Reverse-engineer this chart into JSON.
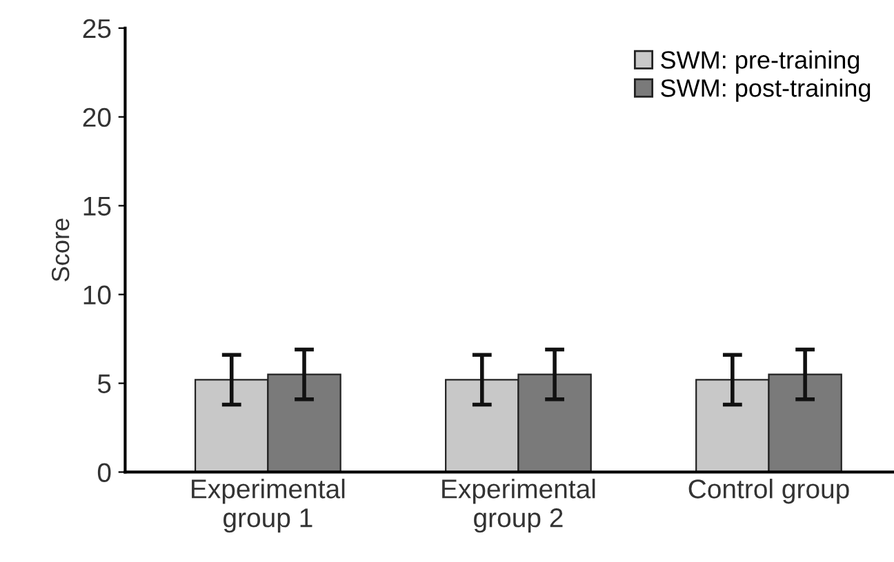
{
  "chart_data": {
    "type": "bar",
    "ylabel": "Score",
    "categories": [
      "Experimental\ngroup 1",
      "Experimental\ngroup 2",
      "Control group"
    ],
    "series": [
      {
        "name": "SWM: pre-training",
        "color": "#c8c8c8",
        "values": [
          5.2,
          5.2,
          5.2
        ],
        "errors": [
          1.4,
          1.4,
          1.4
        ]
      },
      {
        "name": "SWM: post-training",
        "color": "#7a7a7a",
        "values": [
          5.5,
          5.5,
          5.5
        ],
        "errors": [
          1.4,
          1.4,
          1.4
        ]
      }
    ],
    "ylim": [
      0,
      25
    ],
    "yticks": [
      0,
      5,
      10,
      15,
      20,
      25
    ],
    "grid": false,
    "legend": "top right"
  }
}
